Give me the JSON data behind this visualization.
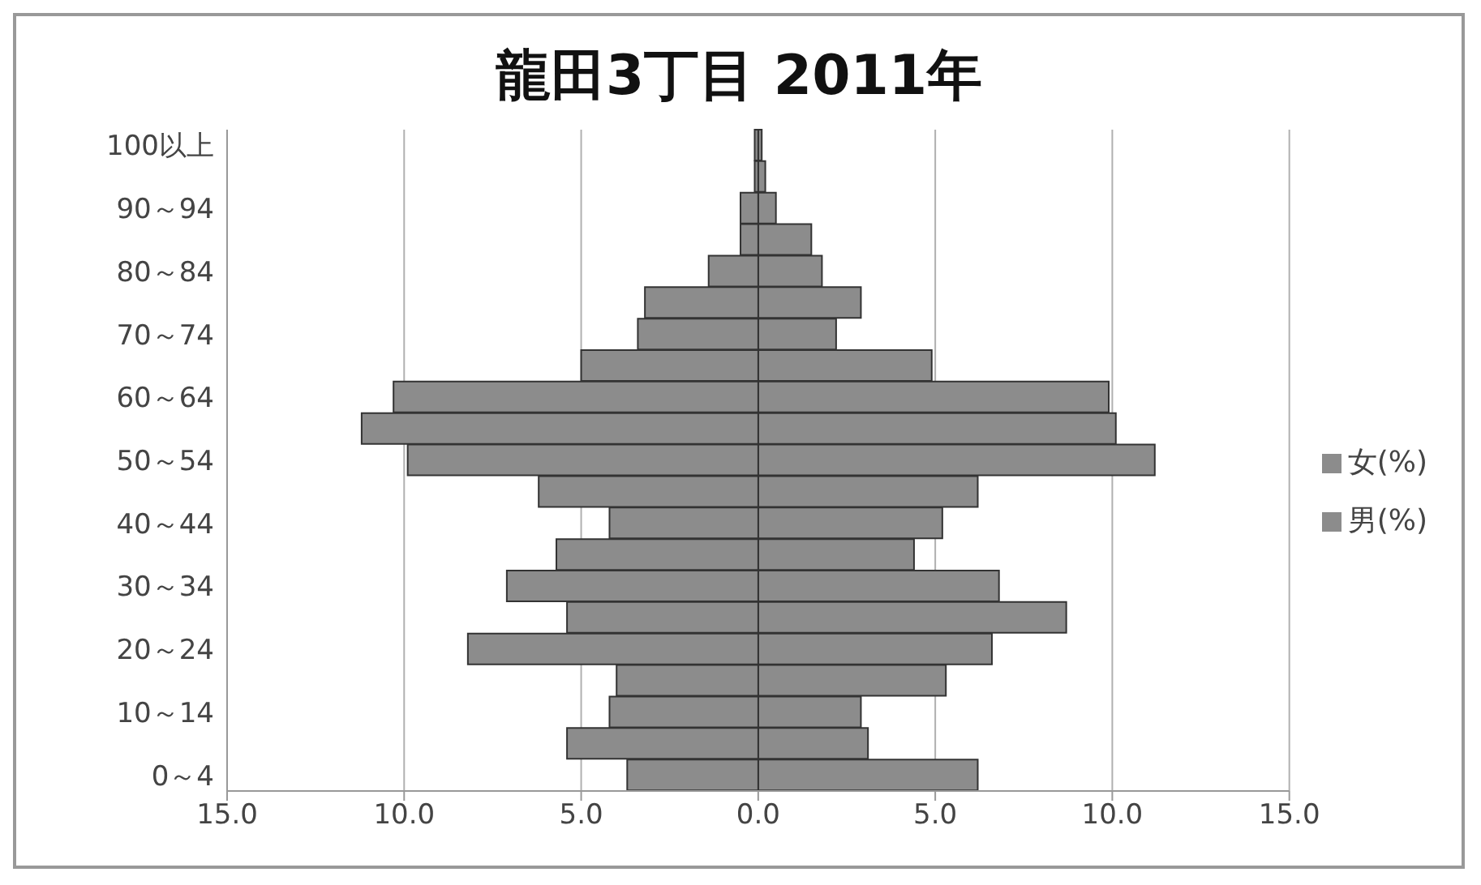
{
  "chart_data": {
    "type": "bar",
    "orientation": "horizontal",
    "title": "龍田3丁目  2011年",
    "categories": [
      "100以上",
      null,
      "90～94",
      null,
      "80～84",
      null,
      "70～74",
      null,
      "60～64",
      null,
      "50～54",
      null,
      "40～44",
      null,
      "30～34",
      null,
      "20～24",
      null,
      "10～14",
      null,
      "0～4"
    ],
    "series": [
      {
        "name": "女(%)",
        "color": "#8c8c8c",
        "values": [
          0.1,
          0.2,
          0.5,
          1.5,
          1.8,
          2.9,
          2.2,
          4.9,
          9.9,
          10.1,
          11.2,
          6.2,
          5.2,
          4.4,
          6.8,
          8.7,
          6.6,
          5.3,
          2.9,
          3.1,
          6.2
        ]
      },
      {
        "name": "男(%)",
        "color": "#8c8c8c",
        "values": [
          -0.1,
          -0.1,
          -0.5,
          -0.5,
          -1.4,
          -3.2,
          -3.4,
          -5.0,
          -10.3,
          -11.2,
          -9.9,
          -6.2,
          -4.2,
          -5.7,
          -7.1,
          -5.4,
          -8.2,
          -4.0,
          -4.2,
          -5.4,
          -3.7
        ]
      }
    ],
    "xlim": [
      -15,
      15
    ],
    "xticks": [
      {
        "value": -15,
        "label": "15.0"
      },
      {
        "value": -10,
        "label": "10.0"
      },
      {
        "value": -5,
        "label": "5.0"
      },
      {
        "value": 0,
        "label": "0.0"
      },
      {
        "value": 5,
        "label": "5.0"
      },
      {
        "value": 10,
        "label": "10.0"
      },
      {
        "value": 15,
        "label": "15.0"
      }
    ],
    "stacked": true,
    "grid": "x",
    "legend": "right"
  }
}
